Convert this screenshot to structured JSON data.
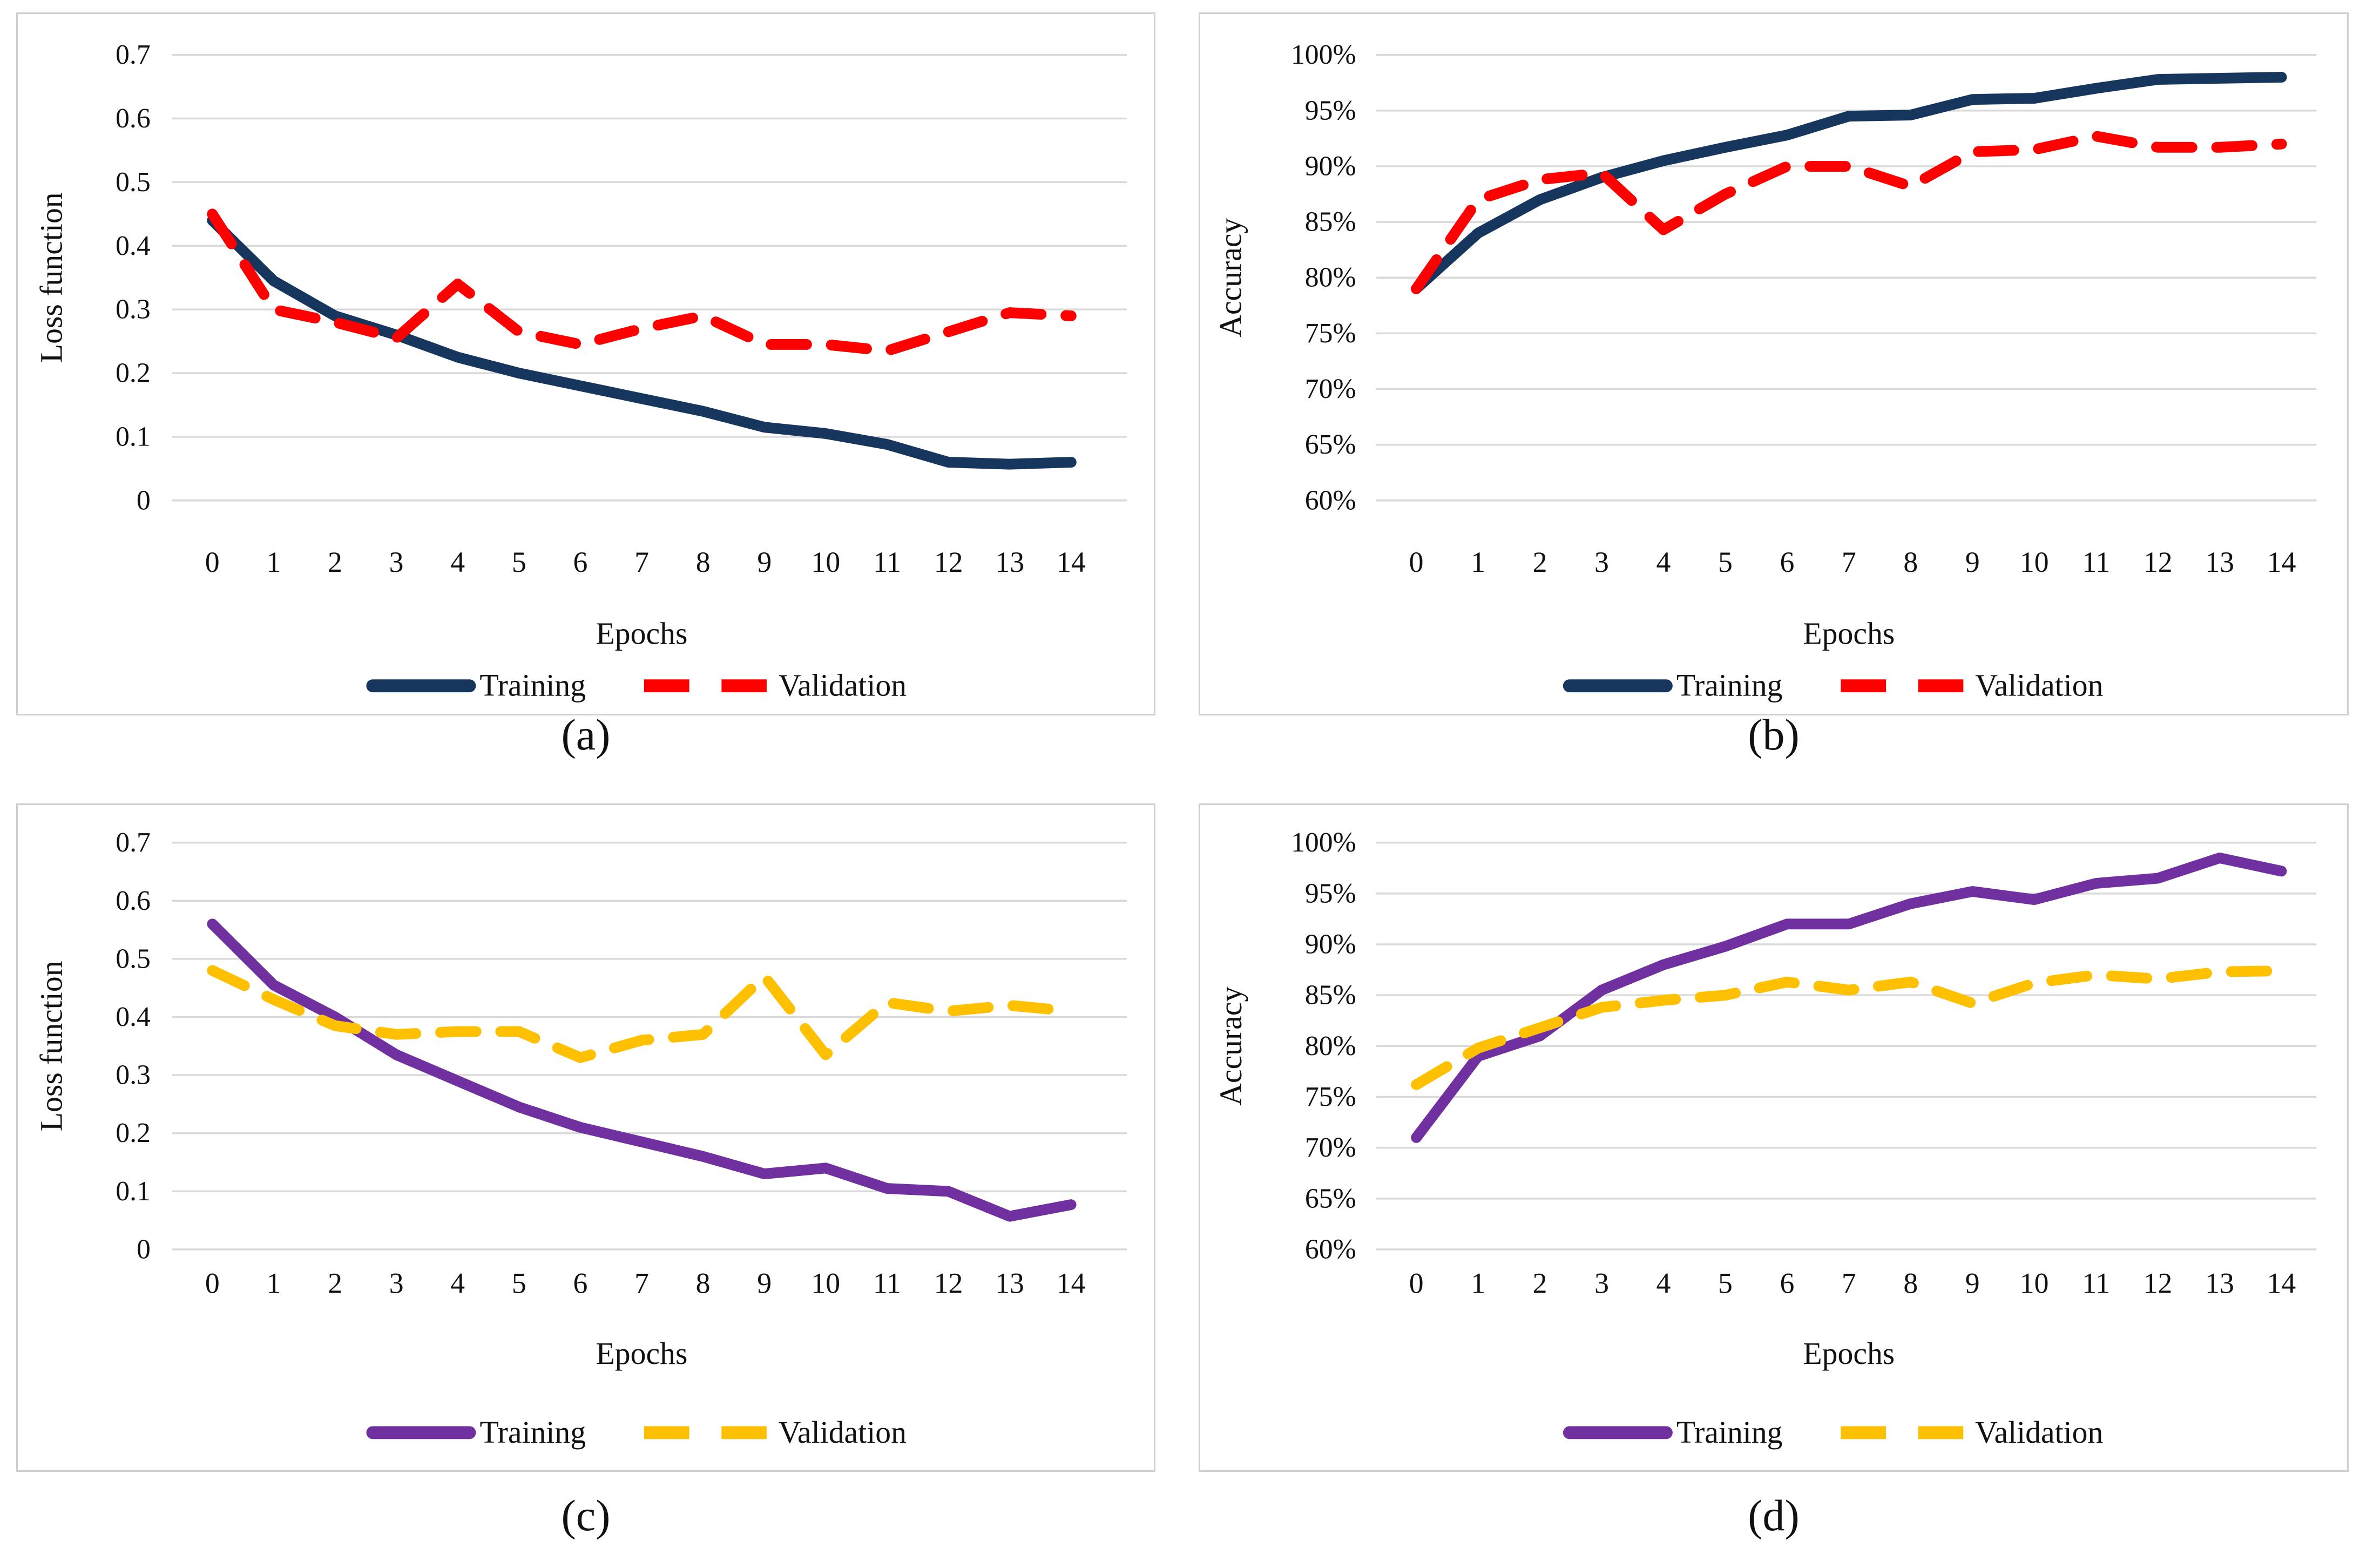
{
  "figure": {
    "captions": [
      "(a)",
      "(b)",
      "(c)",
      "(d)"
    ],
    "colors": {
      "training_navy": "#17365d",
      "validation_red": "#ff0000",
      "training_purple": "#7030a0",
      "validation_gold": "#ffc000",
      "gridline": "#d9d9d9",
      "panel_border": "#d0cece"
    }
  },
  "chart_data": [
    {
      "type": "line",
      "panel": "a",
      "panel_caption": "(a)",
      "title": "",
      "xlabel": "Epochs",
      "ylabel": "Loss function",
      "x": [
        0,
        1,
        2,
        3,
        4,
        5,
        6,
        7,
        8,
        9,
        10,
        11,
        12,
        13,
        14
      ],
      "x_tick_labels": [
        "0",
        "1",
        "2",
        "3",
        "4",
        "5",
        "6",
        "7",
        "8",
        "9",
        "10",
        "11",
        "12",
        "13",
        "14"
      ],
      "ylim": [
        0,
        0.7
      ],
      "y_tick_labels": [
        "0.7",
        "0.6",
        "0.5",
        "0.4",
        "0.3",
        "0.2",
        "0.1",
        "0"
      ],
      "grid": true,
      "legend_position": "bottom-center",
      "series": [
        {
          "name": "Training",
          "color": "#17365d",
          "line_style": "solid",
          "values": [
            0.44,
            0.345,
            0.29,
            0.26,
            0.225,
            0.2,
            0.18,
            0.16,
            0.14,
            0.115,
            0.105,
            0.088,
            0.06,
            0.057,
            0.06
          ]
        },
        {
          "name": "Validation",
          "color": "#ff0000",
          "line_style": "dashed",
          "values": [
            0.45,
            0.3,
            0.28,
            0.255,
            0.34,
            0.265,
            0.245,
            0.27,
            0.29,
            0.245,
            0.245,
            0.235,
            0.265,
            0.295,
            0.29
          ]
        }
      ]
    },
    {
      "type": "line",
      "panel": "b",
      "panel_caption": "(b)",
      "title": "",
      "xlabel": "Epochs",
      "ylabel": "Accuracy",
      "x": [
        0,
        1,
        2,
        3,
        4,
        5,
        6,
        7,
        8,
        9,
        10,
        11,
        12,
        13,
        14
      ],
      "x_tick_labels": [
        "0",
        "1",
        "2",
        "3",
        "4",
        "5",
        "6",
        "7",
        "8",
        "9",
        "10",
        "11",
        "12",
        "13",
        "14"
      ],
      "ylim": [
        60,
        100
      ],
      "y_tick_labels": [
        "100%",
        "95%",
        "90%",
        "85%",
        "80%",
        "75%",
        "70%",
        "65%",
        "60%"
      ],
      "grid": true,
      "legend_position": "bottom-center",
      "series": [
        {
          "name": "Training",
          "color": "#17365d",
          "line_style": "solid",
          "values": [
            79,
            84,
            87,
            89,
            90.5,
            91.7,
            92.8,
            94.5,
            94.6,
            96,
            96.1,
            97,
            97.8,
            97.9,
            98
          ]
        },
        {
          "name": "Validation",
          "color": "#ff0000",
          "line_style": "dashed",
          "values": [
            79,
            87,
            88.8,
            89.4,
            84.3,
            87.5,
            90,
            90,
            88.2,
            91.3,
            91.5,
            92.7,
            91.7,
            91.7,
            92
          ]
        }
      ]
    },
    {
      "type": "line",
      "panel": "c",
      "panel_caption": "(c)",
      "title": "",
      "xlabel": "Epochs",
      "ylabel": "Loss function",
      "x": [
        0,
        1,
        2,
        3,
        4,
        5,
        6,
        7,
        8,
        9,
        10,
        11,
        12,
        13,
        14
      ],
      "x_tick_labels": [
        "0",
        "1",
        "2",
        "3",
        "4",
        "5",
        "6",
        "7",
        "8",
        "9",
        "10",
        "11",
        "12",
        "13",
        "14"
      ],
      "ylim": [
        0,
        0.7
      ],
      "y_tick_labels": [
        "0.7",
        "0.6",
        "0.5",
        "0.4",
        "0.3",
        "0.2",
        "0.1",
        "0"
      ],
      "grid": true,
      "legend_position": "bottom-center",
      "series": [
        {
          "name": "Training",
          "color": "#7030a0",
          "line_style": "solid",
          "values": [
            0.56,
            0.455,
            0.4,
            0.335,
            0.29,
            0.245,
            0.21,
            0.185,
            0.16,
            0.13,
            0.14,
            0.105,
            0.1,
            0.057,
            0.077
          ]
        },
        {
          "name": "Validation",
          "color": "#ffc000",
          "line_style": "dashed",
          "values": [
            0.48,
            0.43,
            0.385,
            0.37,
            0.375,
            0.375,
            0.33,
            0.36,
            0.37,
            0.47,
            0.335,
            0.425,
            0.41,
            0.42,
            0.41
          ]
        }
      ]
    },
    {
      "type": "line",
      "panel": "d",
      "panel_caption": "(d)",
      "title": "",
      "xlabel": "Epochs",
      "ylabel": "Accuracy",
      "x": [
        0,
        1,
        2,
        3,
        4,
        5,
        6,
        7,
        8,
        9,
        10,
        11,
        12,
        13,
        14
      ],
      "x_tick_labels": [
        "0",
        "1",
        "2",
        "3",
        "4",
        "5",
        "6",
        "7",
        "8",
        "9",
        "10",
        "11",
        "12",
        "13",
        "14"
      ],
      "ylim": [
        60,
        100
      ],
      "y_tick_labels": [
        "100%",
        "95%",
        "90%",
        "85%",
        "80%",
        "75%",
        "70%",
        "65%",
        "60%"
      ],
      "grid": true,
      "legend_position": "bottom-center",
      "series": [
        {
          "name": "Training",
          "color": "#7030a0",
          "line_style": "solid",
          "values": [
            71,
            79,
            81,
            85.5,
            88,
            89.8,
            92,
            92,
            94,
            95.2,
            94.4,
            96,
            96.5,
            98.5,
            97.2
          ]
        },
        {
          "name": "Validation",
          "color": "#ffc000",
          "line_style": "dashed",
          "values": [
            76.2,
            79.8,
            81.8,
            83.8,
            84.5,
            85,
            86.3,
            85.5,
            86.3,
            84.2,
            86.2,
            87,
            86.6,
            87.3,
            87.4
          ]
        }
      ]
    }
  ]
}
